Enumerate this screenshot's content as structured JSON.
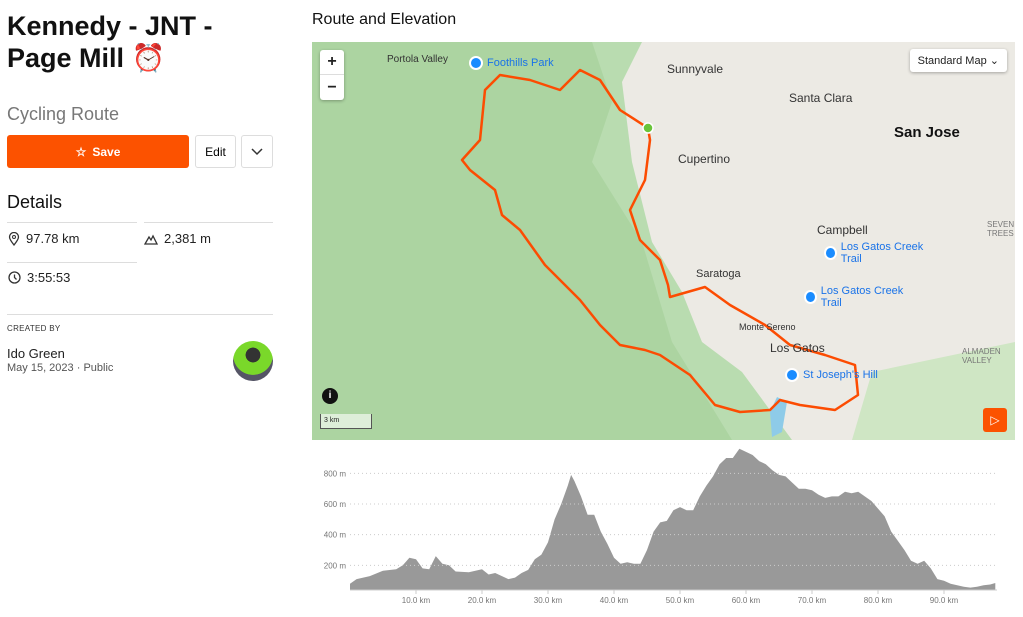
{
  "route": {
    "title": "Kennedy - JNT - Page Mill ⏰",
    "type": "Cycling Route",
    "save_label": "Save",
    "edit_label": "Edit"
  },
  "details": {
    "heading": "Details",
    "distance": "97.78 km",
    "elevation": "2,381 m",
    "time": "3:55:53"
  },
  "creator": {
    "label": "CREATED BY",
    "name": "Ido Green",
    "date": "May 15, 2023",
    "visibility": "Public"
  },
  "map": {
    "heading": "Route and Elevation",
    "style_select": "Standard Map",
    "zoom_in": "+",
    "zoom_out": "−",
    "scale": "3 km",
    "places": [
      "Portola Valley",
      "Sunnyvale",
      "Santa Clara",
      "San Jose",
      "Cupertino",
      "Campbell",
      "Saratoga",
      "Monte Sereno",
      "Los Gatos",
      "ALMADEN VALLEY",
      "SEVEN TREES"
    ],
    "pois": [
      "Foothills Park",
      "Los Gatos Creek Trail",
      "Los Gatos Creek Trail",
      "St Joseph's Hill"
    ],
    "route_color": "#fc4c02"
  },
  "chart_data": {
    "type": "area",
    "xlabel": "Distance",
    "ylabel": "Elevation",
    "xlim": [
      0,
      97.78
    ],
    "ylim": [
      0,
      960
    ],
    "x_ticks": [
      "10.0 km",
      "20.0 km",
      "30.0 km",
      "40.0 km",
      "50.0 km",
      "60.0 km",
      "70.0 km",
      "80.0 km",
      "90.0 km"
    ],
    "y_ticks": [
      "200 m",
      "400 m",
      "600 m",
      "800 m"
    ],
    "x": [
      0,
      1,
      3,
      5,
      7,
      8,
      9,
      10,
      11,
      12,
      13,
      14,
      15,
      16,
      18,
      20,
      21,
      22,
      24,
      25,
      26,
      27,
      28,
      29,
      30,
      31,
      32,
      33,
      33.5,
      34,
      35,
      36,
      37,
      38,
      39,
      40,
      41,
      42,
      43,
      44,
      45,
      46,
      47,
      48,
      49,
      50,
      51,
      52,
      53,
      54,
      55,
      56,
      57,
      58,
      59,
      60,
      61,
      62,
      63,
      64,
      65,
      66,
      67,
      68,
      69,
      70,
      71,
      72,
      73,
      74,
      75,
      76,
      77,
      78,
      79,
      80,
      81,
      82,
      83,
      84,
      85,
      86,
      87,
      88,
      89,
      90,
      91,
      92,
      93,
      94,
      95,
      96,
      97,
      97.78
    ],
    "y": [
      80,
      110,
      130,
      165,
      175,
      200,
      250,
      240,
      180,
      175,
      260,
      210,
      200,
      160,
      155,
      175,
      140,
      150,
      110,
      120,
      150,
      170,
      240,
      270,
      350,
      500,
      600,
      720,
      790,
      750,
      650,
      530,
      530,
      420,
      340,
      250,
      210,
      220,
      210,
      210,
      300,
      420,
      480,
      490,
      560,
      580,
      560,
      560,
      650,
      720,
      780,
      860,
      900,
      900,
      960,
      940,
      920,
      880,
      860,
      820,
      790,
      780,
      740,
      700,
      700,
      690,
      660,
      640,
      650,
      650,
      680,
      670,
      680,
      650,
      620,
      570,
      520,
      420,
      360,
      300,
      230,
      210,
      230,
      180,
      110,
      100,
      80,
      70,
      60,
      55,
      60,
      70,
      75,
      85
    ]
  }
}
